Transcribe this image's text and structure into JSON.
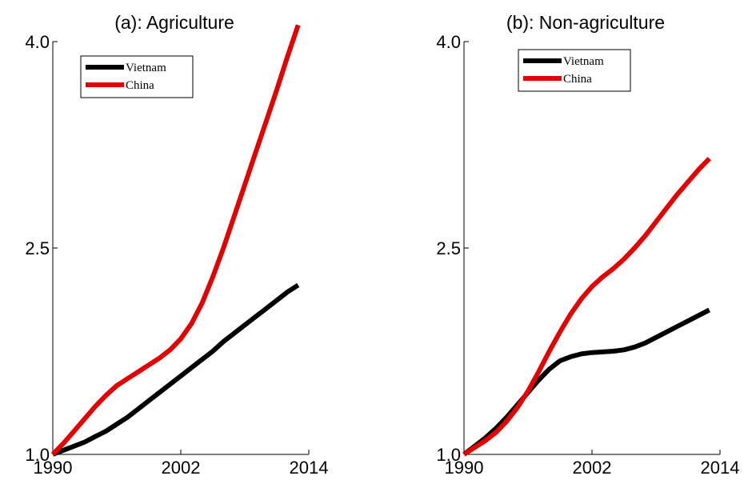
{
  "chart_data": [
    {
      "type": "line",
      "title": "(a): Agriculture",
      "xlabel": "",
      "ylabel": "",
      "xlim": [
        1990,
        2014
      ],
      "ylim": [
        1.0,
        4.0
      ],
      "xticks": [
        "1990",
        "2002",
        "2014"
      ],
      "yticks": [
        "1.0",
        "2.5",
        "4.0"
      ],
      "legend": "top-left",
      "grid": false,
      "series": [
        {
          "name": "Vietnam",
          "color": "#000000",
          "x": [
            1990,
            1991,
            1992,
            1993,
            1994,
            1995,
            1996,
            1997,
            1998,
            1999,
            2000,
            2001,
            2002,
            2003,
            2004,
            2005,
            2006,
            2007,
            2008,
            2009,
            2010,
            2011,
            2012,
            2013
          ],
          "y": [
            1.0,
            1.03,
            1.06,
            1.09,
            1.13,
            1.17,
            1.22,
            1.27,
            1.33,
            1.39,
            1.45,
            1.51,
            1.57,
            1.63,
            1.69,
            1.75,
            1.82,
            1.88,
            1.94,
            2.0,
            2.06,
            2.12,
            2.18,
            2.23
          ]
        },
        {
          "name": "China",
          "color": "#e50000",
          "x": [
            1990,
            1991,
            1992,
            1993,
            1994,
            1995,
            1996,
            1997,
            1998,
            1999,
            2000,
            2001,
            2002,
            2003,
            2004,
            2005,
            2006,
            2007,
            2008,
            2009,
            2010,
            2011,
            2012,
            2013
          ],
          "y": [
            1.0,
            1.08,
            1.17,
            1.26,
            1.35,
            1.43,
            1.5,
            1.55,
            1.6,
            1.65,
            1.7,
            1.76,
            1.84,
            1.95,
            2.1,
            2.29,
            2.5,
            2.73,
            2.96,
            3.19,
            3.42,
            3.65,
            3.89,
            4.12
          ]
        }
      ]
    },
    {
      "type": "line",
      "title": "(b): Non-agriculture",
      "xlabel": "",
      "ylabel": "",
      "xlim": [
        1990,
        2014
      ],
      "ylim": [
        1.0,
        4.0
      ],
      "xticks": [
        "1990",
        "2002",
        "2014"
      ],
      "yticks": [
        "1.0",
        "2.5",
        "4.0"
      ],
      "legend": "top-left",
      "grid": false,
      "series": [
        {
          "name": "Vietnam",
          "color": "#000000",
          "x": [
            1990,
            1991,
            1992,
            1993,
            1994,
            1995,
            1996,
            1997,
            1998,
            1999,
            2000,
            2001,
            2002,
            2003,
            2004,
            2005,
            2006,
            2007,
            2008,
            2009,
            2010,
            2011,
            2012,
            2013
          ],
          "y": [
            1.0,
            1.06,
            1.12,
            1.19,
            1.27,
            1.36,
            1.45,
            1.54,
            1.62,
            1.68,
            1.71,
            1.73,
            1.74,
            1.745,
            1.75,
            1.76,
            1.78,
            1.81,
            1.85,
            1.89,
            1.93,
            1.97,
            2.01,
            2.05
          ]
        },
        {
          "name": "China",
          "color": "#e50000",
          "x": [
            1990,
            1991,
            1992,
            1993,
            1994,
            1995,
            1996,
            1997,
            1998,
            1999,
            2000,
            2001,
            2002,
            2003,
            2004,
            2005,
            2006,
            2007,
            2008,
            2009,
            2010,
            2011,
            2012,
            2013
          ],
          "y": [
            1.0,
            1.05,
            1.1,
            1.16,
            1.24,
            1.34,
            1.46,
            1.6,
            1.75,
            1.89,
            2.02,
            2.13,
            2.22,
            2.29,
            2.35,
            2.42,
            2.5,
            2.59,
            2.69,
            2.79,
            2.89,
            2.98,
            3.07,
            3.15
          ]
        }
      ]
    }
  ]
}
